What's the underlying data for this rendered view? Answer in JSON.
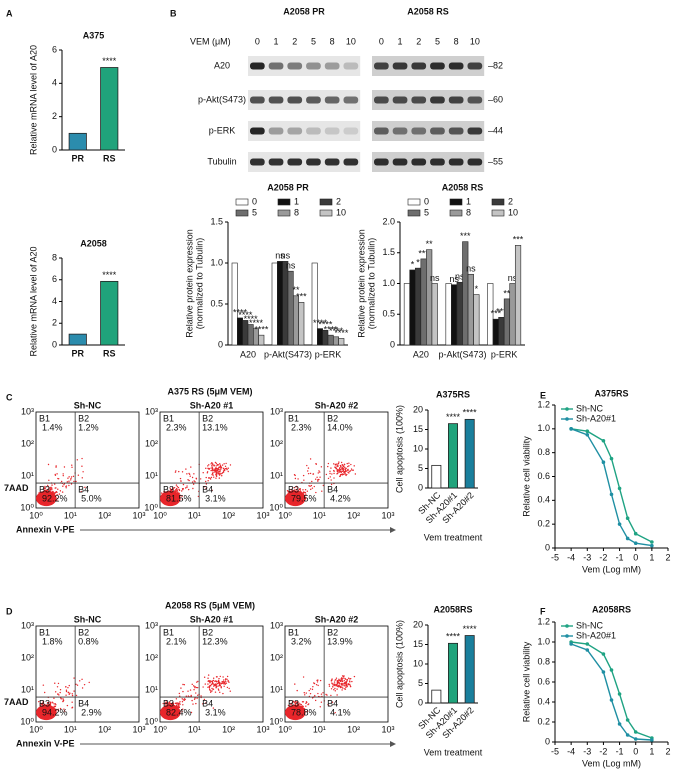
{
  "panel_labels": [
    "A",
    "B",
    "C",
    "D",
    "E",
    "F"
  ],
  "blot": {
    "groups": [
      "A2058 PR",
      "A2058 RS"
    ],
    "dose_label": "VEM (μM)",
    "doses": [
      0,
      1,
      2,
      5,
      8,
      10
    ],
    "rows": [
      "A20",
      "p-Akt(S473)",
      "p-ERK",
      "Tubulin"
    ],
    "markers": [
      "–82",
      "–60",
      "–44",
      "–55"
    ]
  },
  "flow": [
    {
      "title": "A375 RS (5μM VEM)",
      "xlabel": "Annexin V-PE",
      "ylabel": "7AAD",
      "ticks": [
        "10⁰",
        "10¹",
        "10²",
        "10³"
      ],
      "plots": [
        {
          "name": "Sh-NC",
          "quadrants": [
            {
              "label": "B1",
              "value": "1.4%"
            },
            {
              "label": "B2",
              "value": "1.2%"
            },
            {
              "label": "B3",
              "value": "92.2%"
            },
            {
              "label": "B4",
              "value": "5.0%"
            }
          ]
        },
        {
          "name": "Sh-A20 #1",
          "quadrants": [
            {
              "label": "B1",
              "value": "2.3%"
            },
            {
              "label": "B2",
              "value": "13.1%"
            },
            {
              "label": "B3",
              "value": "81.5%"
            },
            {
              "label": "B4",
              "value": "3.1%"
            }
          ]
        },
        {
          "name": "Sh-A20 #2",
          "quadrants": [
            {
              "label": "B1",
              "value": "2.3%"
            },
            {
              "label": "B2",
              "value": "14.0%"
            },
            {
              "label": "B3",
              "value": "79.5%"
            },
            {
              "label": "B4",
              "value": "4.2%"
            }
          ]
        }
      ]
    },
    {
      "title": "A2058 RS (5μM VEM)",
      "xlabel": "Annexin V-PE",
      "ylabel": "7AAD",
      "ticks": [
        "10⁰",
        "10¹",
        "10²",
        "10³"
      ],
      "plots": [
        {
          "name": "Sh-NC",
          "quadrants": [
            {
              "label": "B1",
              "value": "1.8%"
            },
            {
              "label": "B2",
              "value": "0.8%"
            },
            {
              "label": "B3",
              "value": "94.2%"
            },
            {
              "label": "B4",
              "value": "2.9%"
            }
          ]
        },
        {
          "name": "Sh-A20 #1",
          "quadrants": [
            {
              "label": "B1",
              "value": "2.1%"
            },
            {
              "label": "B2",
              "value": "12.3%"
            },
            {
              "label": "B3",
              "value": "82.4%"
            },
            {
              "label": "B4",
              "value": "3.1%"
            }
          ]
        },
        {
          "name": "Sh-A20 #2",
          "quadrants": [
            {
              "label": "B1",
              "value": "3.2%"
            },
            {
              "label": "B2",
              "value": "13.9%"
            },
            {
              "label": "B3",
              "value": "78.8%"
            },
            {
              "label": "B4",
              "value": "4.1%"
            }
          ]
        }
      ]
    }
  ],
  "chart_data": [
    {
      "type": "bar",
      "title": "A375",
      "ylabel": "Relative mRNA level of A20",
      "categories": [
        "PR",
        "RS"
      ],
      "values": [
        1.0,
        4.95
      ],
      "colors": [
        "#2b8cad",
        "#20a37b"
      ],
      "annotations": [
        null,
        "****"
      ],
      "ylim": [
        0,
        6
      ],
      "yticks": [
        0,
        2,
        4,
        6
      ]
    },
    {
      "type": "bar",
      "title": "A2058",
      "ylabel": "Relative mRNA level of A20",
      "categories": [
        "PR",
        "RS"
      ],
      "values": [
        1.0,
        5.85
      ],
      "colors": [
        "#2b8cad",
        "#20a37b"
      ],
      "annotations": [
        null,
        "****"
      ],
      "ylim": [
        0,
        8
      ],
      "yticks": [
        0,
        2,
        4,
        6,
        8
      ]
    },
    {
      "type": "grouped_bar",
      "title": "A2058 PR",
      "ylabel": [
        "Relative protein expression",
        "(normalized to Tubulin)"
      ],
      "categories": [
        "A20",
        "p-Akt(S473)",
        "p-ERK"
      ],
      "ylim": [
        0,
        1.5
      ],
      "yticks": [
        0,
        0.5,
        {
          "value": 1,
          "label": "1.0"
        },
        1.5
      ],
      "series": [
        {
          "name": "0",
          "color": "#ffffff",
          "values": [
            1.0,
            1.0,
            1.0
          ],
          "annotations": [
            null,
            null,
            null
          ]
        },
        {
          "name": "1",
          "color": "#111111",
          "values": [
            0.33,
            1.02,
            0.2
          ],
          "annotations": [
            "****",
            "ns",
            "****"
          ]
        },
        {
          "name": "2",
          "color": "#3a3a3a",
          "values": [
            0.3,
            1.02,
            0.18
          ],
          "annotations": [
            "****",
            "ns",
            "****"
          ]
        },
        {
          "name": "5",
          "color": "#6e6e6e",
          "values": [
            0.25,
            0.9,
            0.12
          ],
          "annotations": [
            "****",
            "ns",
            "****"
          ]
        },
        {
          "name": "8",
          "color": "#9a9a9a",
          "values": [
            0.2,
            0.6,
            0.1
          ],
          "annotations": [
            "****",
            "**",
            "****"
          ]
        },
        {
          "name": "10",
          "color": "#c4c4c4",
          "values": [
            0.12,
            0.52,
            0.08
          ],
          "annotations": [
            "****",
            "***",
            "****"
          ]
        }
      ]
    },
    {
      "type": "grouped_bar",
      "title": "A2058 RS",
      "ylabel": [
        "Relative protein expression",
        "(normalized to Tubulin)"
      ],
      "categories": [
        "A20",
        "p-Akt(S473)",
        "p-ERK"
      ],
      "ylim": [
        0,
        2.0
      ],
      "yticks": [
        0,
        0.5,
        {
          "value": 1,
          "label": "1.0"
        },
        1.5,
        {
          "value": 2,
          "label": "2.0"
        }
      ],
      "series": [
        {
          "name": "0",
          "color": "#ffffff",
          "values": [
            1.0,
            1.0,
            1.0
          ],
          "annotations": [
            null,
            null,
            null
          ]
        },
        {
          "name": "1",
          "color": "#111111",
          "values": [
            1.22,
            0.98,
            0.42
          ],
          "annotations": [
            "*",
            "ns",
            "***"
          ]
        },
        {
          "name": "2",
          "color": "#3a3a3a",
          "values": [
            1.25,
            1.02,
            0.45
          ],
          "annotations": [
            "*",
            "ns",
            "***"
          ]
        },
        {
          "name": "5",
          "color": "#6e6e6e",
          "values": [
            1.4,
            1.68,
            0.75
          ],
          "annotations": [
            "***",
            "***",
            "**"
          ]
        },
        {
          "name": "8",
          "color": "#9a9a9a",
          "values": [
            1.55,
            1.15,
            1.0
          ],
          "annotations": [
            "**",
            "ns",
            "ns"
          ]
        },
        {
          "name": "10",
          "color": "#c4c4c4",
          "values": [
            1.0,
            0.82,
            1.62
          ],
          "annotations": [
            "ns",
            "*",
            "***"
          ]
        }
      ]
    },
    {
      "type": "bar",
      "title": "A375RS",
      "ylabel": "Cell apoptosis (100%)",
      "xlabel": "Vem treatment",
      "categories": [
        "Sh-NC",
        "Sh-A20#1",
        "Sh-A20#2"
      ],
      "values": [
        5.8,
        16.5,
        17.6
      ],
      "colors": [
        "#ffffff",
        "#20a37b",
        "#1a7f9c"
      ],
      "annotations": [
        null,
        "****",
        "****"
      ],
      "ylim": [
        0,
        20
      ],
      "yticks": [
        0,
        5,
        10,
        15,
        20
      ]
    },
    {
      "type": "bar",
      "title": "A2058RS",
      "ylabel": "Cell apoptosis (100%)",
      "xlabel": "Vem treatment",
      "categories": [
        "Sh-NC",
        "Sh-A20#1",
        "Sh-A20#2"
      ],
      "values": [
        3.3,
        15.3,
        17.3
      ],
      "colors": [
        "#ffffff",
        "#20a37b",
        "#1a7f9c"
      ],
      "annotations": [
        null,
        "****",
        "****"
      ],
      "ylim": [
        0,
        20
      ],
      "yticks": [
        0,
        5,
        10,
        15,
        20
      ]
    },
    {
      "type": "line",
      "title": "A375RS",
      "ylabel": "Relative cell viability",
      "xlabel": "Vem (Log mM)",
      "x": [
        -4,
        -3,
        -2,
        -1.5,
        -1,
        -0.5,
        0,
        1
      ],
      "series": [
        {
          "name": "Sh-NC",
          "color": "#1fa383",
          "values": [
            1.0,
            0.98,
            0.9,
            0.75,
            0.5,
            0.25,
            0.12,
            0.05
          ]
        },
        {
          "name": "Sh-A20#1",
          "color": "#1f8fa3",
          "values": [
            1.0,
            0.95,
            0.72,
            0.45,
            0.2,
            0.08,
            0.04,
            0.02
          ]
        }
      ],
      "xlim": [
        -5,
        2
      ],
      "xticks": [
        -5,
        -4,
        -3,
        -2,
        -1,
        0,
        1,
        2
      ],
      "ylim": [
        0,
        1.2
      ],
      "yticks": [
        0,
        0.2,
        0.4,
        0.6,
        0.8,
        {
          "value": 1,
          "label": "1.0"
        },
        1.2
      ]
    },
    {
      "type": "line",
      "title": "A2058RS",
      "ylabel": "Relative cell viability",
      "xlabel": "Vem (Log mM)",
      "x": [
        -4,
        -3,
        -2,
        -1.5,
        -1,
        -0.5,
        0,
        1
      ],
      "series": [
        {
          "name": "Sh-NC",
          "color": "#1fa383",
          "values": [
            1.0,
            0.98,
            0.88,
            0.72,
            0.48,
            0.22,
            0.1,
            0.04
          ]
        },
        {
          "name": "Sh-A20#1",
          "color": "#1f8fa3",
          "values": [
            0.98,
            0.92,
            0.7,
            0.42,
            0.18,
            0.07,
            0.03,
            0.02
          ]
        }
      ],
      "xlim": [
        -5,
        2
      ],
      "xticks": [
        -5,
        -4,
        -3,
        -2,
        -1,
        0,
        1,
        2
      ],
      "ylim": [
        0,
        1.2
      ],
      "yticks": [
        0,
        0.2,
        0.4,
        0.6,
        0.8,
        {
          "value": 1,
          "label": "1.0"
        },
        1.2
      ]
    }
  ]
}
